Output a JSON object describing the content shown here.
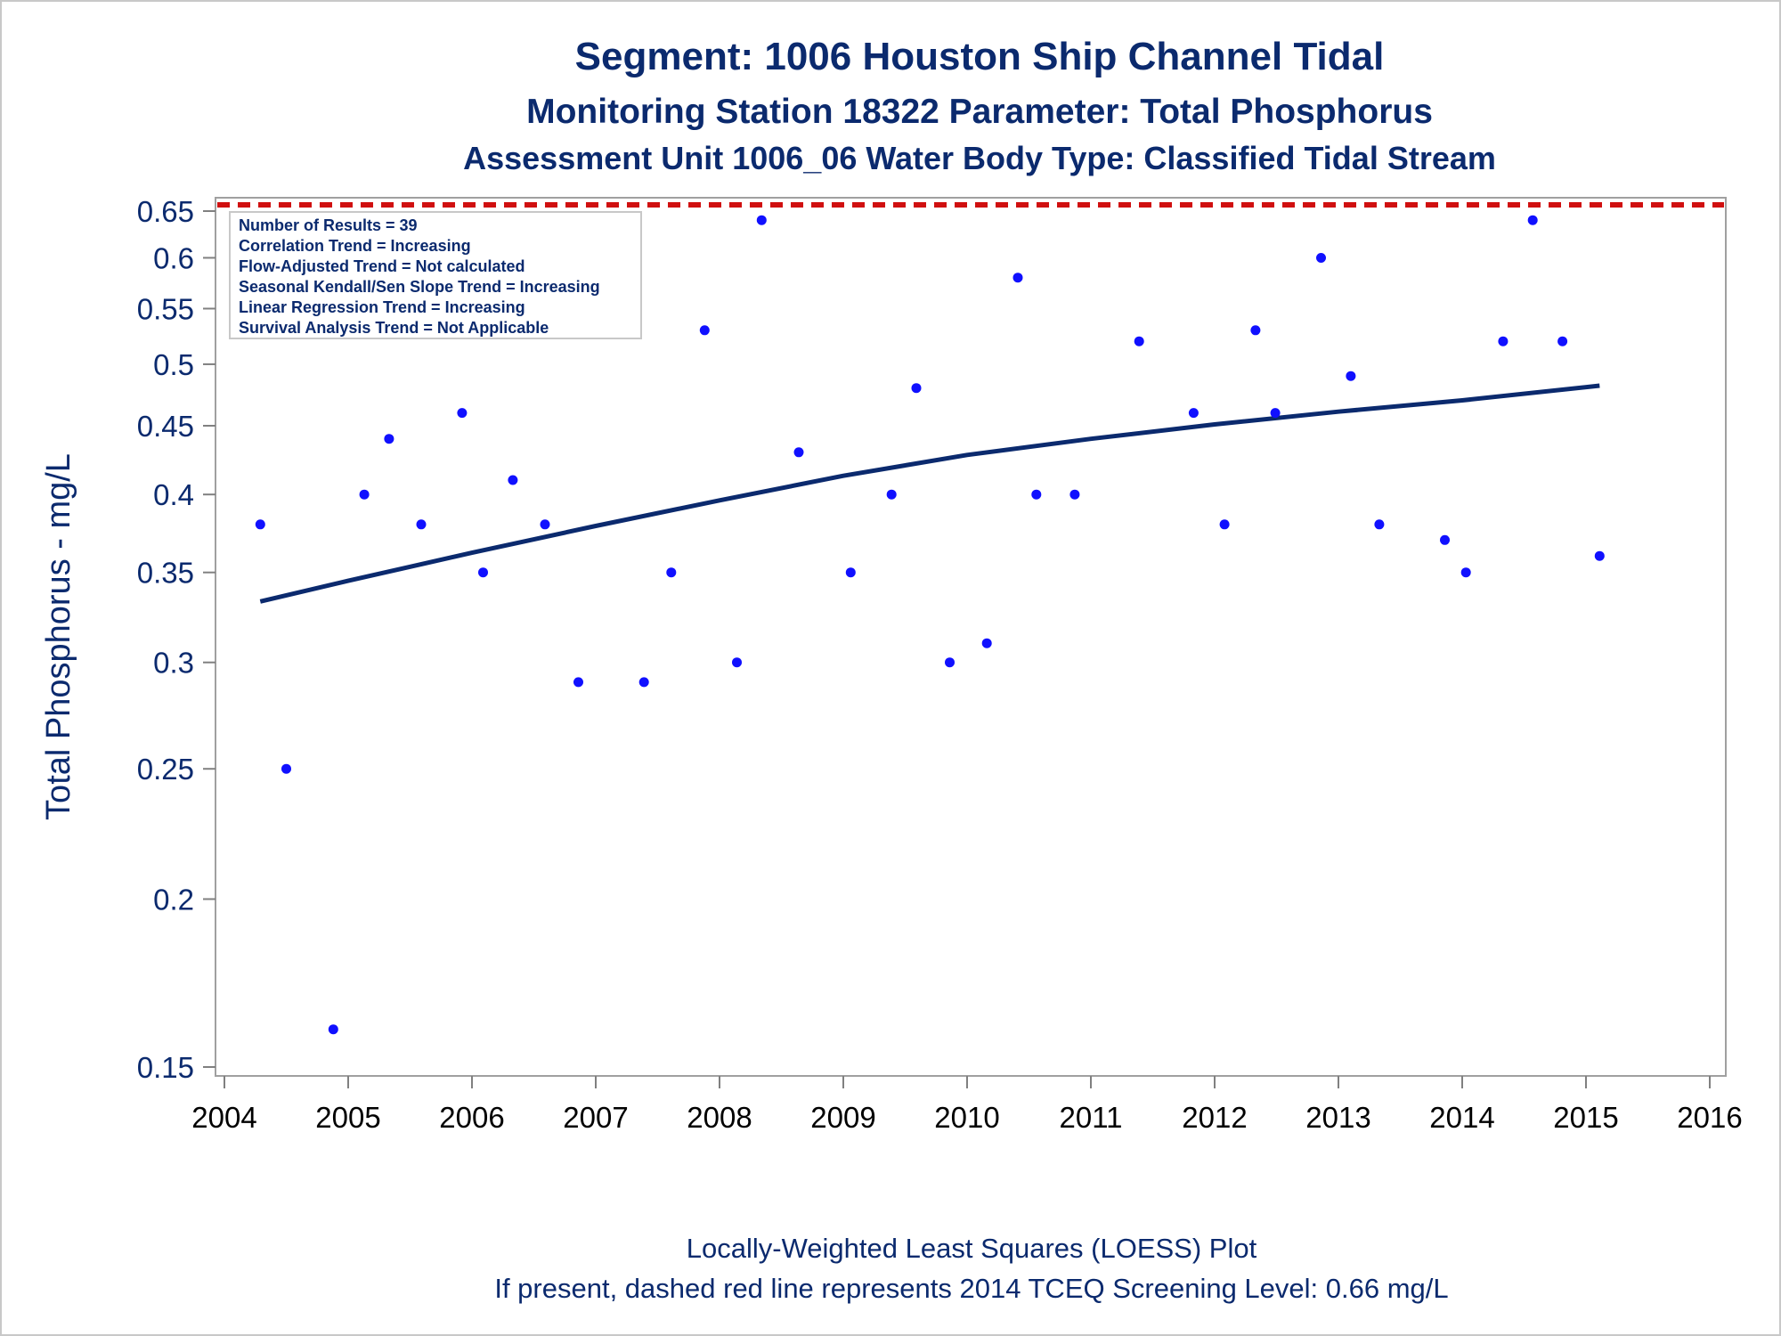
{
  "chart_data": {
    "type": "scatter",
    "title": "Segment: 1006  Houston Ship Channel Tidal",
    "subtitle": "Monitoring Station 18322 Parameter: Total Phosphorus",
    "subtitle2": "Assessment Unit 1006_06   Water Body Type: Classified Tidal Stream",
    "xlabel": "",
    "ylabel": "Total Phosphorus - mg/L",
    "y_scale": "log",
    "xlim": [
      2004,
      2016
    ],
    "ylim": [
      0.145,
      0.675
    ],
    "x_ticks": [
      "2004",
      "2005",
      "2006",
      "2007",
      "2008",
      "2009",
      "2010",
      "2011",
      "2012",
      "2013",
      "2014",
      "2015",
      "2016"
    ],
    "y_ticks": [
      "0.15",
      "0.2",
      "0.25",
      "0.3",
      "0.35",
      "0.4",
      "0.45",
      "0.5",
      "0.55",
      "0.6",
      "0.65"
    ],
    "inset_lines": [
      "Number of Results = 39",
      "Correlation Trend = Increasing",
      "Flow-Adjusted Trend = Not calculated",
      "Seasonal Kendall/Sen Slope Trend = Increasing",
      "Linear Regression Trend = Increasing",
      "Survival Analysis Trend = Not Applicable"
    ],
    "footnote1": "Locally-Weighted Least Squares (LOESS) Plot",
    "footnote2": "If present, dashed red line represents 2014 TCEQ Screening Level: 0.66 mg/L",
    "screening_level": 0.66,
    "colors": {
      "points": "#1010ff",
      "loess": "#0b2a6e",
      "screening": "#d01010",
      "text": "#0b2a6e"
    },
    "series": [
      {
        "type": "scatter",
        "x": [
          2004.29,
          2004.5,
          2004.88,
          2005.13,
          2005.33,
          2005.59,
          2005.92,
          2006.09,
          2006.33,
          2006.59,
          2006.86,
          2007.39,
          2007.61,
          2007.88,
          2008.14,
          2008.34,
          2008.64,
          2009.06,
          2009.39,
          2009.59,
          2009.86,
          2010.16,
          2010.41,
          2010.56,
          2010.87,
          2011.39,
          2011.83,
          2012.08,
          2012.33,
          2012.49,
          2012.86,
          2013.1,
          2013.33,
          2013.86,
          2014.03,
          2014.33,
          2014.57,
          2014.81,
          2015.11
        ],
        "y": [
          0.38,
          0.25,
          0.16,
          0.4,
          0.44,
          0.38,
          0.46,
          0.35,
          0.41,
          0.38,
          0.29,
          0.29,
          0.35,
          0.53,
          0.3,
          0.64,
          0.43,
          0.35,
          0.4,
          0.48,
          0.3,
          0.31,
          0.58,
          0.4,
          0.4,
          0.52,
          0.46,
          0.38,
          0.53,
          0.46,
          0.6,
          0.49,
          0.38,
          0.37,
          0.35,
          0.52,
          0.64,
          0.52,
          0.36
        ]
      },
      {
        "type": "line",
        "x": [
          2004.29,
          2005.0,
          2006.0,
          2007.0,
          2008.0,
          2009.0,
          2010.0,
          2011.0,
          2012.0,
          2013.0,
          2014.0,
          2015.11
        ],
        "y": [
          0.333,
          0.345,
          0.362,
          0.379,
          0.396,
          0.413,
          0.428,
          0.44,
          0.451,
          0.461,
          0.47,
          0.482
        ]
      }
    ]
  }
}
